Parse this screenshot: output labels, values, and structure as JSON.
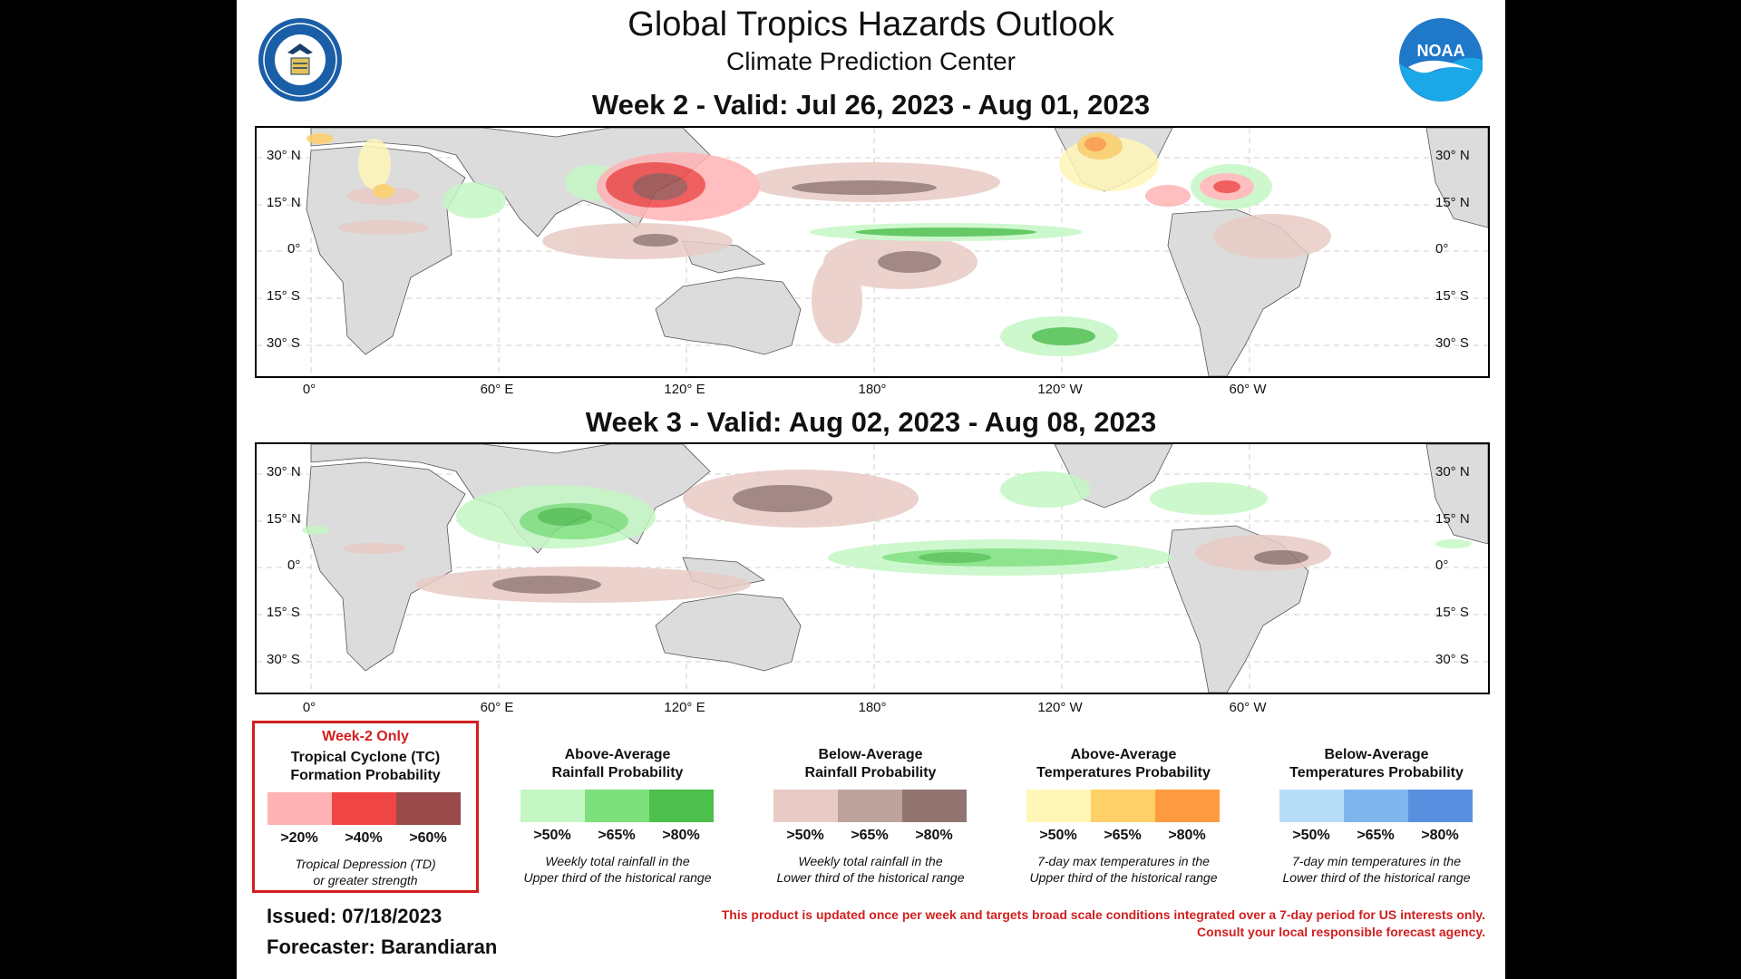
{
  "header": {
    "title": "Global Tropics Hazards Outlook",
    "subtitle": "Climate Prediction Center"
  },
  "logos": {
    "left": {
      "icon": "doc-seal-icon",
      "text": "DEPARTMENT OF COMMERCE",
      "text2": "UNITED STATES OF AMERICA"
    },
    "right": {
      "icon": "noaa-logo-icon",
      "text": "NOAA"
    }
  },
  "maps": [
    {
      "title": "Week 2 - Valid: Jul 26, 2023 - Aug 01, 2023"
    },
    {
      "title": "Week 3 - Valid: Aug 02, 2023 - Aug 08, 2023"
    }
  ],
  "axes": {
    "lat_labels_left": [
      "30° N",
      "15° N",
      "0°",
      "15° S",
      "30° S"
    ],
    "lat_labels_right": [
      "30° N",
      "15° N",
      "0°",
      "15° S",
      "30° S"
    ],
    "lon_labels": [
      "0°",
      "60° E",
      "120° E",
      "180°",
      "120° W",
      "60° W"
    ]
  },
  "legend": {
    "tc": {
      "head": "Week-2 Only",
      "title1": "Tropical Cyclone (TC)",
      "title2": "Formation Probability",
      "thresholds": [
        ">20%",
        ">40%",
        ">60%"
      ],
      "colors": [
        "#ffb3b5",
        "#ef4545",
        "#9a4a4a"
      ],
      "note1": "Tropical Depression (TD)",
      "note2": "or greater strength",
      "border_color": "#d21f1f"
    },
    "rain_above": {
      "title1": "Above-Average",
      "title2": "Rainfall Probability",
      "thresholds": [
        ">50%",
        ">65%",
        ">80%"
      ],
      "colors": [
        "#c5f7c5",
        "#7ce07c",
        "#4cbf4c"
      ],
      "note1": "Weekly total rainfall in the",
      "note2": "Upper third of the historical range"
    },
    "rain_below": {
      "title1": "Below-Average",
      "title2": "Rainfall Probability",
      "thresholds": [
        ">50%",
        ">65%",
        ">80%"
      ],
      "colors": [
        "#e8cbc5",
        "#bea39c",
        "#927571"
      ],
      "note1": "Weekly total rainfall in the",
      "note2": "Lower third of the historical range"
    },
    "temp_above": {
      "title1": "Above-Average",
      "title2": "Temperatures Probability",
      "thresholds": [
        ">50%",
        ">65%",
        ">80%"
      ],
      "colors": [
        "#fff6b8",
        "#ffd068",
        "#ff9a40"
      ],
      "note1": "7-day max temperatures in the",
      "note2": "Upper third of the historical range"
    },
    "temp_below": {
      "title1": "Below-Average",
      "title2": "Temperatures Probability",
      "thresholds": [
        ">50%",
        ">65%",
        ">80%"
      ],
      "colors": [
        "#b8ddf8",
        "#80b6ee",
        "#5a8fdf"
      ],
      "note1": "7-day min temperatures in the",
      "note2": "Lower third of the historical range"
    }
  },
  "footer": {
    "issued": "Issued: 07/18/2023",
    "forecaster": "Forecaster: Barandiaran",
    "disclaimer1": "This product is updated once per week and targets broad scale conditions integrated over a 7-day period for US interests only.",
    "disclaimer2": "Consult your local responsible forecast agency."
  }
}
